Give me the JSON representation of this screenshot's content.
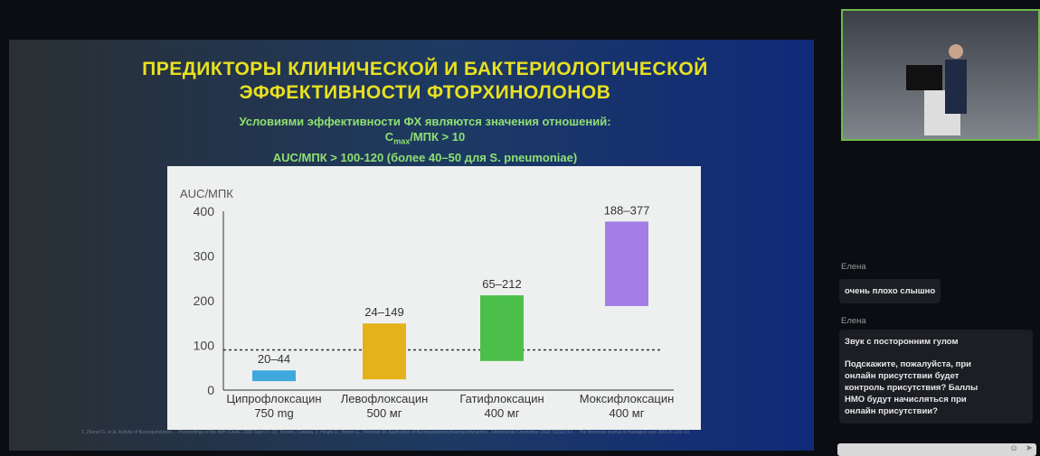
{
  "slide": {
    "title": "ПРЕДИКТОРЫ КЛИНИЧЕСКОЙ И БАКТЕРИОЛОГИЧЕСКОЙ ЭФФЕКТИВНОСТИ ФТОРХИНОЛОНОВ",
    "subtitle_line1": "Условиями эффективности ФХ являются значения отношений:",
    "subtitle_line2_a": "C",
    "subtitle_line2_sub": "max",
    "subtitle_line2_b": "/МПК > 10",
    "subtitle_line3": "AUC/МПК > 100-120  (более 40–50 для S. pneumoniae)",
    "references": "1. Zhanel G. et al. Activity of fluoroquinolones ... Proceedings of the 40th ICAAC 2000 Sept 17–20, Toronto, Canada. 2. Hingle D., Brown G., Peterson M. Application of fluoroquinolone pharmacodynamics. J Antimicrob Chemother 2003; 51(S1):53 ... The American journal of managed care 2001;8:1100-10"
  },
  "chart_data": {
    "type": "bar",
    "ylabel": "AUC/МПК",
    "ylim": [
      0,
      400
    ],
    "yticks": [
      0,
      100,
      200,
      300,
      400
    ],
    "categories": [
      "Ципрофлоксацин 750 mg",
      "Левофлоксацин 500 мг",
      "Гатифлоксацин 400 мг",
      "Моксифлоксацин 400 мг"
    ],
    "cat_line1": [
      "Ципрофлоксацин",
      "Левофлоксацин",
      "Гатифлоксацин",
      "Моксифлоксацин"
    ],
    "cat_line2": [
      "750 mg",
      "500 мг",
      "400 мг",
      "400 мг"
    ],
    "ranges": [
      [
        20,
        44
      ],
      [
        24,
        149
      ],
      [
        65,
        212
      ],
      [
        188,
        377
      ]
    ],
    "labels": [
      "20–44",
      "24–149",
      "65–212",
      "188–377"
    ],
    "colors": [
      "#3fa9de",
      "#e4b21a",
      "#4cbf4a",
      "#a27ee6"
    ],
    "threshold_dashed": 90
  },
  "chat": {
    "messages": [
      {
        "author": "Елена",
        "text": "очень плохо слышно"
      },
      {
        "author": "Елена",
        "text": "Звук с посторонним гулом"
      },
      {
        "author": "",
        "text": "Подскажите, пожалуйста, при онлайн присутствии будет контроль присутствия? Баллы НМО будут начисляться при онлайн присутствии?"
      }
    ]
  }
}
